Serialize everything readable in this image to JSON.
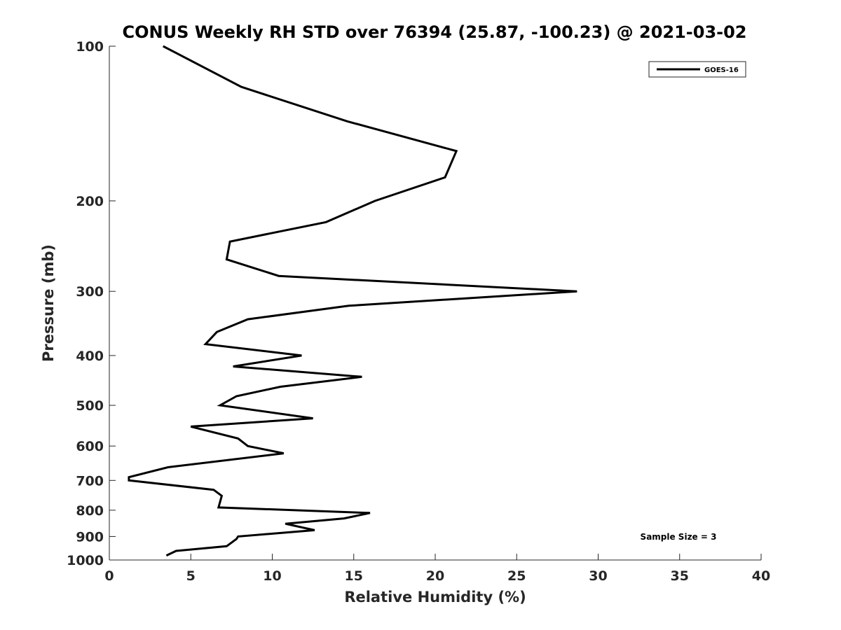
{
  "chart_data": {
    "type": "line",
    "title": "CONUS Weekly RH STD over 76394 (25.87, -100.23) @ 2021-03-02",
    "xlabel": "Relative Humidity (%)",
    "ylabel": "Pressure (mb)",
    "xlim": [
      0,
      40
    ],
    "ylim": [
      100,
      1000
    ],
    "y_scale": "log",
    "y_reversed": true,
    "grid": false,
    "legend_position": "top-right",
    "x_ticks": [
      "0",
      "5",
      "10",
      "15",
      "20",
      "25",
      "30",
      "35",
      "40"
    ],
    "y_ticks": [
      "100",
      "200",
      "300",
      "400",
      "500",
      "600",
      "700",
      "800",
      "900",
      "1000"
    ],
    "annotation": "Sample Size = 3",
    "series": [
      {
        "name": "GOES-16",
        "color": "#000000",
        "x": [
          3.3,
          8.1,
          14.6,
          21.3,
          20.6,
          16.3,
          13.3,
          7.4,
          7.2,
          10.4,
          28.7,
          14.7,
          8.5,
          6.6,
          5.9,
          11.8,
          7.6,
          15.5,
          10.5,
          7.8,
          6.8,
          12.5,
          5.0,
          7.9,
          8.5,
          10.7,
          3.6,
          1.2,
          1.2,
          6.4,
          6.9,
          6.8,
          6.7,
          16.0,
          14.4,
          10.8,
          12.6,
          7.9,
          7.8,
          7.2,
          4.1,
          3.5
        ],
        "y": [
          100,
          120,
          140,
          160,
          180,
          200,
          220,
          240,
          260,
          280,
          300,
          320,
          340,
          360,
          380,
          400,
          420,
          440,
          460,
          480,
          500,
          530,
          550,
          580,
          600,
          620,
          660,
          690,
          700,
          730,
          750,
          770,
          790,
          810,
          830,
          850,
          875,
          900,
          910,
          940,
          960,
          980
        ]
      }
    ]
  }
}
